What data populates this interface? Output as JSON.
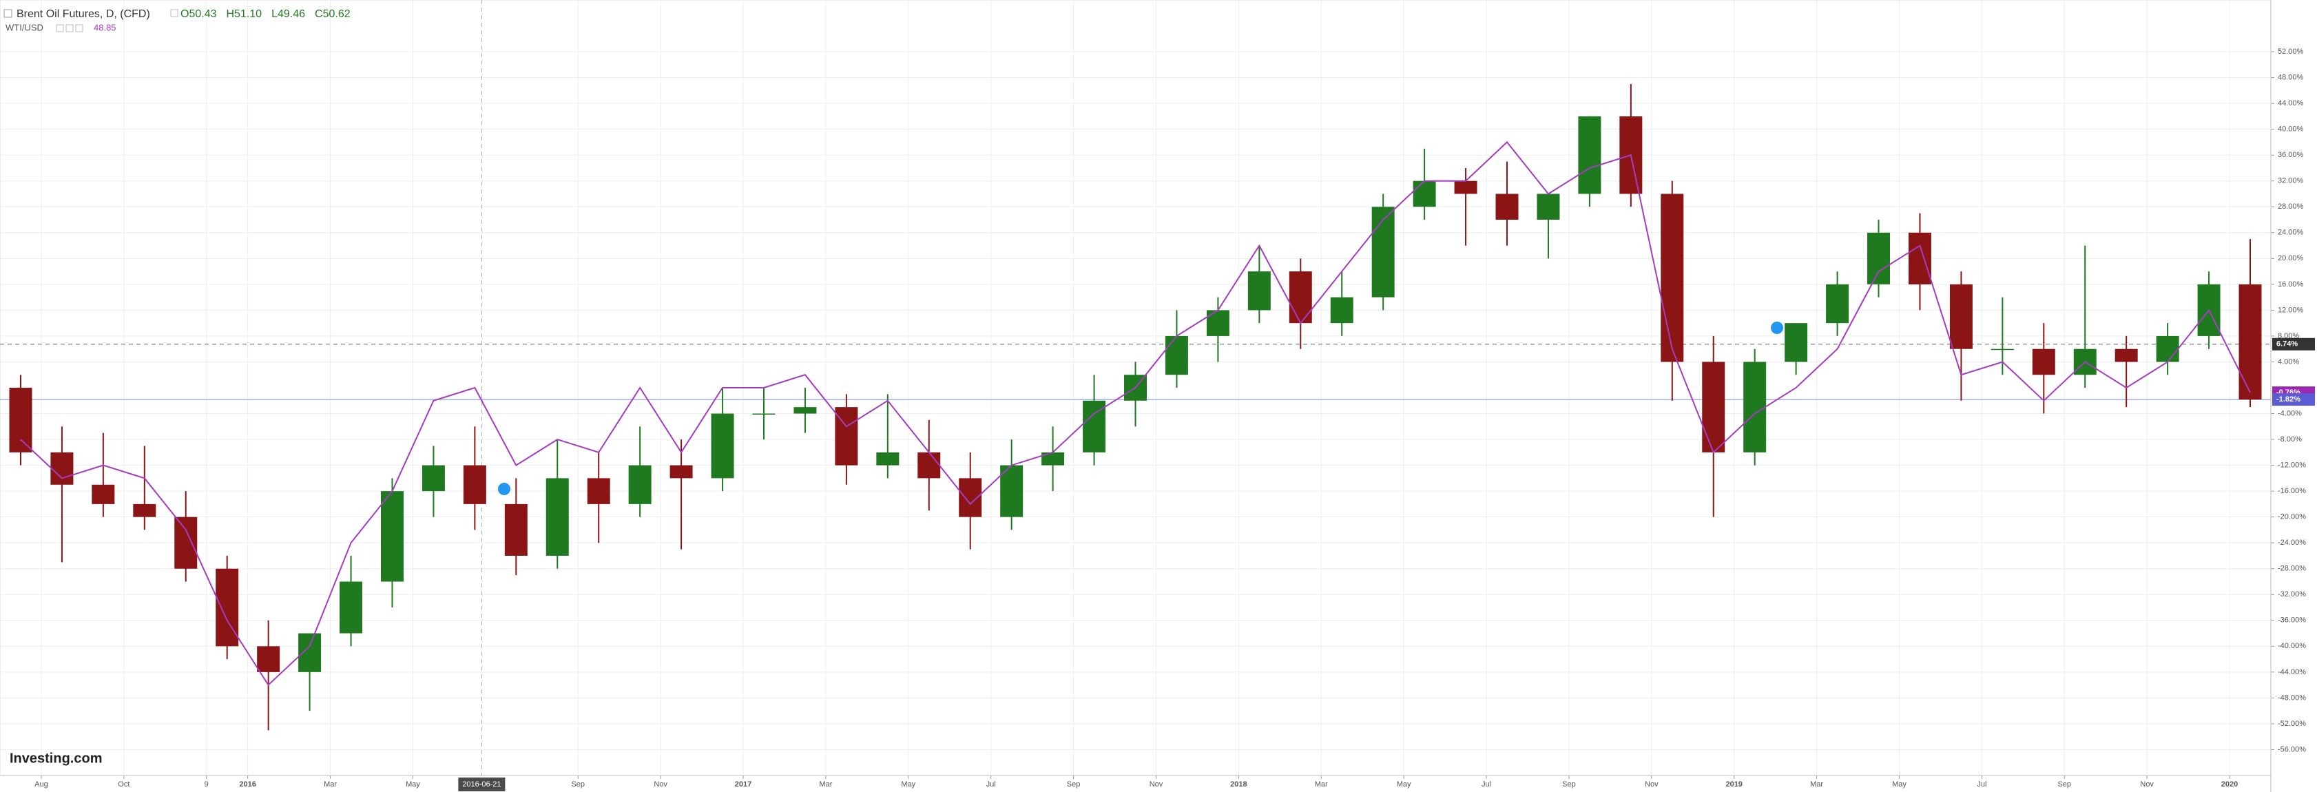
{
  "chart_data": {
    "type": "candlestick",
    "legend_values": [
      "O50.43",
      "H51.10",
      "L49.46",
      "C50.62"
    ],
    "x": [
      "2015-07",
      "2015-08",
      "2015-09",
      "2015-10",
      "2015-11",
      "2015-12",
      "2016-01",
      "2016-02",
      "2016-03",
      "2016-04",
      "2016-05",
      "2016-06",
      "2016-07",
      "2016-08",
      "2016-09",
      "2016-10",
      "2016-11",
      "2016-12",
      "2017-01",
      "2017-02",
      "2017-03",
      "2017-04",
      "2017-05",
      "2017-06",
      "2017-07",
      "2017-08",
      "2017-09",
      "2017-10",
      "2017-11",
      "2017-12",
      "2018-01",
      "2018-02",
      "2018-03",
      "2018-04",
      "2018-05",
      "2018-06",
      "2018-07",
      "2018-08",
      "2018-09",
      "2018-10",
      "2018-11",
      "2018-12",
      "2019-01",
      "2019-02",
      "2019-03",
      "2019-04",
      "2019-05",
      "2019-06",
      "2019-07",
      "2019-08",
      "2019-09",
      "2019-10",
      "2019-11",
      "2019-12",
      "2020-01"
    ],
    "series": [
      {
        "name": "Brent Oil Futures, D, (CFD)",
        "type": "candlestick",
        "up_color": "#1f7a1f",
        "down_color": "#8b1414",
        "open": [
          0,
          -10,
          -15,
          -18,
          -20,
          -28,
          -40,
          -44,
          -38,
          -30,
          -16,
          -12,
          -18,
          -26,
          -14,
          -18,
          -12,
          -14,
          -4,
          -4,
          -3,
          -12,
          -10,
          -14,
          -20,
          -12,
          -10,
          -2,
          2,
          8,
          12,
          18,
          10,
          14,
          28,
          32,
          30,
          26,
          30,
          42,
          30,
          4,
          -10,
          4,
          10,
          16,
          24,
          16,
          6,
          6,
          2,
          6,
          4,
          8,
          16
        ],
        "high": [
          2,
          -6,
          -7,
          -9,
          -16,
          -26,
          -36,
          -38,
          -26,
          -14,
          -9,
          -6,
          -14,
          -8,
          -10,
          -6,
          -8,
          0,
          0,
          0,
          -1,
          -1,
          -5,
          -10,
          -8,
          -6,
          2,
          4,
          12,
          14,
          22,
          20,
          18,
          30,
          37,
          34,
          35,
          30,
          42,
          47,
          32,
          8,
          6,
          10,
          18,
          26,
          27,
          18,
          14,
          10,
          22,
          8,
          10,
          18,
          23
        ],
        "low": [
          -12,
          -27,
          -20,
          -22,
          -30,
          -42,
          -53,
          -50,
          -40,
          -34,
          -20,
          -22,
          -29,
          -28,
          -24,
          -20,
          -25,
          -16,
          -8,
          -7,
          -15,
          -14,
          -19,
          -25,
          -22,
          -16,
          -12,
          -6,
          0,
          4,
          10,
          6,
          8,
          12,
          26,
          22,
          22,
          20,
          28,
          28,
          -2,
          -20,
          -12,
          2,
          8,
          14,
          12,
          -2,
          2,
          -4,
          0,
          -3,
          2,
          6,
          -3
        ],
        "close": [
          -10,
          -15,
          -18,
          -20,
          -28,
          -40,
          -44,
          -38,
          -30,
          -16,
          -12,
          -18,
          -26,
          -14,
          -18,
          -12,
          -14,
          -4,
          -4,
          -3,
          -12,
          -10,
          -14,
          -20,
          -12,
          -10,
          -2,
          2,
          8,
          12,
          18,
          10,
          14,
          28,
          32,
          30,
          26,
          30,
          42,
          30,
          4,
          -10,
          4,
          10,
          16,
          24,
          16,
          6,
          6,
          2,
          6,
          4,
          8,
          16,
          -1.82
        ]
      },
      {
        "name": "WTI/USD",
        "type": "line",
        "color": "#a43cc0",
        "last": "48.85",
        "values": [
          -8,
          -14,
          -12,
          -14,
          -22,
          -36,
          -46,
          -40,
          -24,
          -16,
          -2,
          0,
          -12,
          -8,
          -10,
          0,
          -10,
          0,
          0,
          2,
          -6,
          -2,
          -10,
          -18,
          -12,
          -10,
          -4,
          0,
          8,
          12,
          22,
          10,
          18,
          26,
          32,
          32,
          38,
          30,
          34,
          36,
          6,
          -10,
          -4,
          0,
          6,
          18,
          22,
          2,
          4,
          -2,
          4,
          0,
          4,
          12,
          -0.76
        ]
      }
    ],
    "xlim": [
      "2015-07",
      "2020-02"
    ],
    "xticks": [
      {
        "value": "2015-08",
        "label": "Aug"
      },
      {
        "value": "2015-10",
        "label": "Oct"
      },
      {
        "value": "2015-12",
        "label": "9"
      },
      {
        "value": "2016-01",
        "label": "2016"
      },
      {
        "value": "2016-03",
        "label": "Mar"
      },
      {
        "value": "2016-05",
        "label": "May"
      },
      {
        "value": "2016-09",
        "label": "Sep"
      },
      {
        "value": "2016-11",
        "label": "Nov"
      },
      {
        "value": "2017-01",
        "label": "2017"
      },
      {
        "value": "2017-03",
        "label": "Mar"
      },
      {
        "value": "2017-05",
        "label": "May"
      },
      {
        "value": "2017-07",
        "label": "Jul"
      },
      {
        "value": "2017-09",
        "label": "Sep"
      },
      {
        "value": "2017-11",
        "label": "Nov"
      },
      {
        "value": "2018-01",
        "label": "2018"
      },
      {
        "value": "2018-03",
        "label": "Mar"
      },
      {
        "value": "2018-05",
        "label": "May"
      },
      {
        "value": "2018-07",
        "label": "Jul"
      },
      {
        "value": "2018-09",
        "label": "Sep"
      },
      {
        "value": "2018-11",
        "label": "Nov"
      },
      {
        "value": "2019-01",
        "label": "2019"
      },
      {
        "value": "2019-03",
        "label": "Mar"
      },
      {
        "value": "2019-05",
        "label": "May"
      },
      {
        "value": "2019-07",
        "label": "Jul"
      },
      {
        "value": "2019-09",
        "label": "Sep"
      },
      {
        "value": "2019-11",
        "label": "Nov"
      },
      {
        "value": "2020-01",
        "label": "2020"
      }
    ],
    "crosshair": "2016-06-21",
    "ylim": [
      -60,
      60
    ],
    "yticks": [
      {
        "value": 52,
        "label": "52.00%"
      },
      {
        "value": 48,
        "label": "48.00%"
      },
      {
        "value": 44,
        "label": "44.00%"
      },
      {
        "value": 40,
        "label": "40.00%"
      },
      {
        "value": 36,
        "label": "36.00%"
      },
      {
        "value": 32,
        "label": "32.00%"
      },
      {
        "value": 28,
        "label": "28.00%"
      },
      {
        "value": 24,
        "label": "24.00%"
      },
      {
        "value": 20,
        "label": "20.00%"
      },
      {
        "value": 16,
        "label": "16.00%"
      },
      {
        "value": 12,
        "label": "12.00%"
      },
      {
        "value": 8,
        "label": "8.00%"
      },
      {
        "value": 4,
        "label": "4.00%"
      },
      {
        "value": -4,
        "label": "-4.00%"
      },
      {
        "value": -8,
        "label": "-8.00%"
      },
      {
        "value": -12,
        "label": "-12.00%"
      },
      {
        "value": -16,
        "label": "-16.00%"
      },
      {
        "value": -20,
        "label": "-20.00%"
      },
      {
        "value": -24,
        "label": "-24.00%"
      },
      {
        "value": -28,
        "label": "-28.00%"
      },
      {
        "value": -32,
        "label": "-32.00%"
      },
      {
        "value": -36,
        "label": "-36.00%"
      },
      {
        "value": -40,
        "label": "-40.00%"
      },
      {
        "value": -44,
        "label": "-44.00%"
      },
      {
        "value": -48,
        "label": "-48.00%"
      },
      {
        "value": -52,
        "label": "-52.00%"
      },
      {
        "value": -56,
        "label": "-56.00%"
      }
    ],
    "price_labels": [
      {
        "value": 6.74,
        "label": "6.74%",
        "color": "#333333",
        "line": "dashed"
      },
      {
        "value": -0.76,
        "label": "-0.76%",
        "color": "#9c27b0",
        "line": "none"
      },
      {
        "value": -1.82,
        "label": "-1.82%",
        "color": "#5b5bd6",
        "line": "solid"
      }
    ],
    "grid": true,
    "logo": "Investing.com"
  }
}
